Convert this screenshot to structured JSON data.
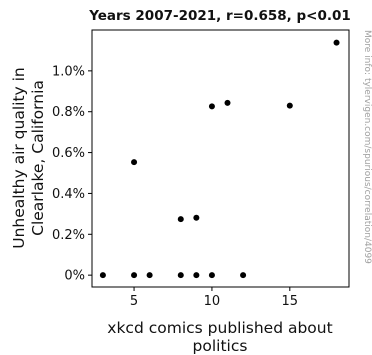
{
  "chart_data": {
    "type": "scatter",
    "title": "Years 2007-2021, r=0.658, p<0.01",
    "xlabel_lines": [
      "xkcd comics published about",
      "politics"
    ],
    "ylabel_lines": [
      "Unhealthy air quality in",
      "Clearlake, California"
    ],
    "side_note": "More info: tylervigen.com/spurious/correlation/4099",
    "xlim": [
      2.3,
      18.8
    ],
    "ylim": [
      -0.058,
      1.2
    ],
    "x_ticks": [
      5,
      10,
      15
    ],
    "x_tick_labels": [
      "5",
      "10",
      "15"
    ],
    "y_ticks": [
      0,
      0.2,
      0.4,
      0.6,
      0.8,
      1.0
    ],
    "y_tick_labels": [
      "0%",
      "0.2%",
      "0.4%",
      "0.6%",
      "0.8%",
      "1.0%"
    ],
    "grid": false,
    "point_color": "#000000",
    "points": [
      {
        "x": 3,
        "y": 0
      },
      {
        "x": 5,
        "y": 0
      },
      {
        "x": 5,
        "y": 0.553
      },
      {
        "x": 6,
        "y": 0
      },
      {
        "x": 8,
        "y": 0
      },
      {
        "x": 8,
        "y": 0.274
      },
      {
        "x": 9,
        "y": 0
      },
      {
        "x": 9,
        "y": 0.281
      },
      {
        "x": 10,
        "y": 0
      },
      {
        "x": 10,
        "y": 0.826
      },
      {
        "x": 11,
        "y": 0.843
      },
      {
        "x": 12,
        "y": 0
      },
      {
        "x": 15,
        "y": 0.83
      },
      {
        "x": 18,
        "y": 1.138
      }
    ]
  }
}
